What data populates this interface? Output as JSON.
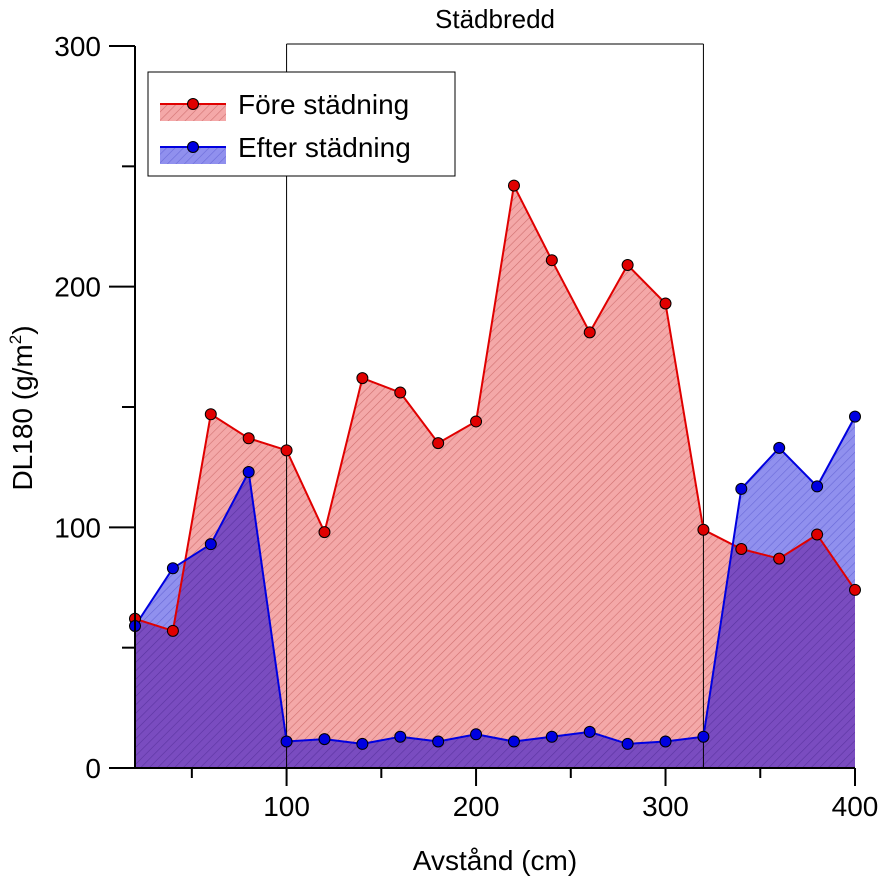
{
  "chart_data": {
    "type": "area",
    "xlabel": "Avstånd (cm)",
    "ylabel_main": "DL180 (g/m",
    "ylabel_sup": "2",
    "ylabel_tail": ")",
    "xlim": [
      20,
      400
    ],
    "ylim": [
      0,
      300
    ],
    "x_major_ticks": [
      100,
      200,
      300,
      400
    ],
    "x_minor_ticks": [
      50,
      150,
      250,
      350
    ],
    "y_major_ticks": [
      0,
      100,
      200,
      300
    ],
    "y_minor_ticks": [
      50,
      150,
      250
    ],
    "grid": false,
    "legend_position": "top-left",
    "bracket": {
      "label": "Städbredd",
      "x_start": 100,
      "x_end": 320
    },
    "x": [
      20,
      40,
      60,
      80,
      100,
      120,
      140,
      160,
      180,
      200,
      220,
      240,
      260,
      280,
      300,
      320,
      340,
      360,
      380,
      400
    ],
    "series": [
      {
        "name": "Före städning",
        "color": "#e00000",
        "fill": "#f4a0a0",
        "values": [
          62,
          57,
          147,
          137,
          132,
          98,
          162,
          156,
          135,
          144,
          242,
          211,
          181,
          209,
          193,
          99,
          91,
          87,
          97,
          74
        ]
      },
      {
        "name": "Efter städning",
        "color": "#0000e0",
        "fill": "#8888e8",
        "values": [
          59,
          83,
          93,
          123,
          11,
          12,
          10,
          13,
          11,
          14,
          11,
          13,
          15,
          10,
          11,
          13,
          116,
          133,
          117,
          146
        ]
      }
    ]
  }
}
